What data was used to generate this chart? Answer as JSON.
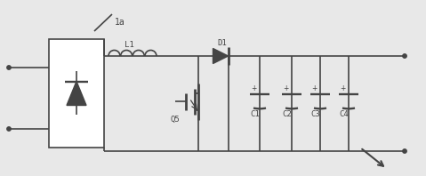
{
  "bg_color": "#e8e8e8",
  "line_color": "#444444",
  "lw": 1.2,
  "fig_w": 4.79,
  "fig_h": 1.98,
  "dpi": 100,
  "label_1a": "1a",
  "label_L1": "L1",
  "label_D1": "D1",
  "label_Q5": "Q5",
  "label_C1": "C1",
  "label_C2": "C2",
  "label_C3": "C3",
  "label_C4": "C4",
  "xlim": [
    0,
    4.79
  ],
  "ylim": [
    0,
    1.98
  ]
}
